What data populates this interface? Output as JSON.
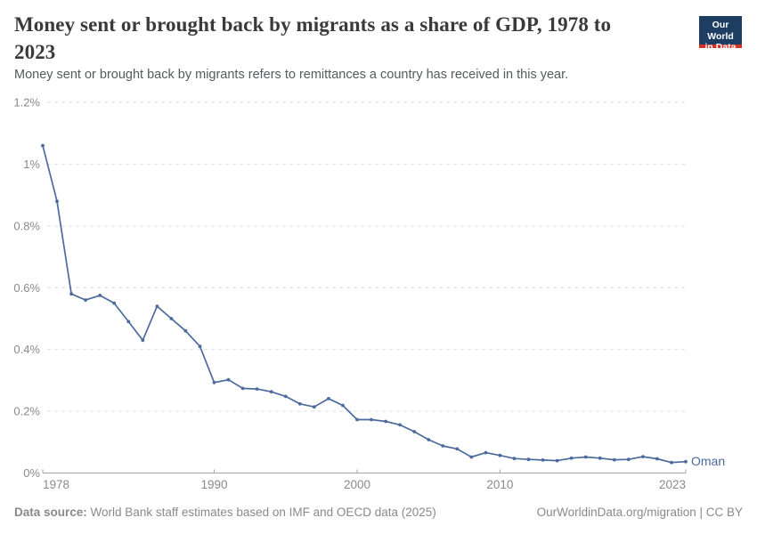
{
  "header": {
    "title_line1": "Money sent or brought back by migrants as a share of GDP, 1978 to",
    "title_line2": "2023",
    "subtitle": "Money sent or brought back by migrants refers to remittances a country has received in this year."
  },
  "logo": {
    "line1": "Our World",
    "line2": "in Data",
    "bg_color": "#1d3d63",
    "stripe_color": "#d13328"
  },
  "chart_data": {
    "type": "line",
    "title": "Money sent or brought back by migrants as a share of GDP, 1978 to 2023",
    "xlabel": "",
    "ylabel": "",
    "unit": "%",
    "grid": "horizontal-dashed",
    "legend_position": "end-of-line-label",
    "xlim": [
      1978,
      2023
    ],
    "ylim": [
      0,
      1.2
    ],
    "y_ticks": [
      {
        "value": 0,
        "label": "0%"
      },
      {
        "value": 0.2,
        "label": "0.2%"
      },
      {
        "value": 0.4,
        "label": "0.4%"
      },
      {
        "value": 0.6,
        "label": "0.6%"
      },
      {
        "value": 0.8,
        "label": "0.8%"
      },
      {
        "value": 1.0,
        "label": "1%"
      },
      {
        "value": 1.2,
        "label": "1.2%"
      }
    ],
    "x_ticks": [
      {
        "value": 1978,
        "label": "1978"
      },
      {
        "value": 1990,
        "label": "1990"
      },
      {
        "value": 2000,
        "label": "2000"
      },
      {
        "value": 2010,
        "label": "2010"
      },
      {
        "value": 2023,
        "label": "2023"
      }
    ],
    "series": [
      {
        "name": "Oman",
        "color": "#4C6A9C",
        "x": [
          1978,
          1979,
          1980,
          1981,
          1982,
          1983,
          1984,
          1985,
          1986,
          1987,
          1988,
          1989,
          1990,
          1991,
          1992,
          1993,
          1994,
          1995,
          1996,
          1997,
          1998,
          1999,
          2000,
          2001,
          2002,
          2003,
          2004,
          2005,
          2006,
          2007,
          2008,
          2009,
          2010,
          2011,
          2012,
          2013,
          2014,
          2015,
          2016,
          2017,
          2018,
          2019,
          2020,
          2021,
          2022,
          2023
        ],
        "values": [
          1.06,
          0.88,
          0.58,
          0.56,
          0.575,
          0.55,
          0.49,
          0.43,
          0.54,
          0.5,
          0.46,
          0.41,
          0.293,
          0.302,
          0.274,
          0.272,
          0.263,
          0.248,
          0.224,
          0.214,
          0.241,
          0.219,
          0.173,
          0.173,
          0.167,
          0.156,
          0.134,
          0.108,
          0.088,
          0.078,
          0.052,
          0.066,
          0.057,
          0.047,
          0.044,
          0.042,
          0.04,
          0.048,
          0.052,
          0.048,
          0.043,
          0.044,
          0.053,
          0.046,
          0.034,
          0.037
        ]
      }
    ]
  },
  "footer": {
    "source_label": "Data source:",
    "source_text": "World Bank staff estimates based on IMF and OECD data (2025)",
    "credit": "OurWorldinData.org/migration | CC BY"
  },
  "colors": {
    "title": "#3a3a3a",
    "subtitle": "#565b5e",
    "tick_label": "#8a8a8a",
    "gridline": "#dedede",
    "axis": "#a5a5a5",
    "footer_text": "#8a8a8a"
  }
}
